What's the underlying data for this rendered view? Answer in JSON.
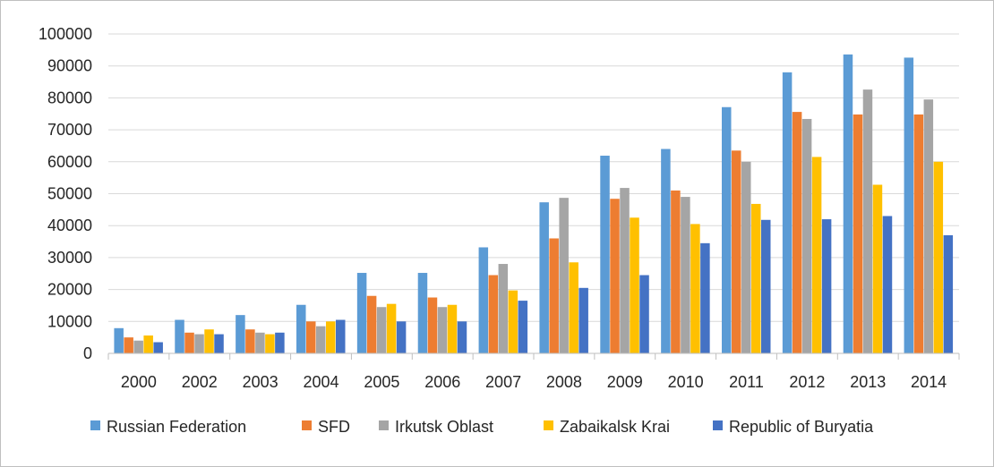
{
  "chart_data": {
    "type": "bar",
    "title": "",
    "xlabel": "",
    "ylabel": "",
    "ylim": [
      0,
      100000
    ],
    "yticks": [
      0,
      10000,
      20000,
      30000,
      40000,
      50000,
      60000,
      70000,
      80000,
      90000,
      100000
    ],
    "grid": true,
    "legend_position": "bottom",
    "categories": [
      "2000",
      "2002",
      "2003",
      "2004",
      "2005",
      "2006",
      "2007",
      "2008",
      "2009",
      "2010",
      "2011",
      "2012",
      "2013",
      "2014"
    ],
    "series": [
      {
        "name": "Russian Federation",
        "color": "#5b9bd5",
        "values": [
          7900,
          10500,
          12000,
          15200,
          25200,
          25200,
          33200,
          47300,
          61900,
          64000,
          77100,
          88000,
          93600,
          92600
        ]
      },
      {
        "name": "SFD",
        "color": "#ed7d31",
        "values": [
          5000,
          6500,
          7500,
          10000,
          18000,
          17500,
          24500,
          36000,
          48400,
          51000,
          63500,
          75600,
          74800,
          74800
        ]
      },
      {
        "name": "Irkutsk Oblast",
        "color": "#a5a5a5",
        "values": [
          4000,
          6000,
          6500,
          8500,
          14500,
          14500,
          28000,
          48700,
          51800,
          49000,
          60000,
          73400,
          82600,
          79500
        ]
      },
      {
        "name": "Zabaikalsk Krai",
        "color": "#ffc000",
        "values": [
          5600,
          7500,
          6000,
          10000,
          15500,
          15200,
          19700,
          28500,
          42500,
          40500,
          46800,
          61500,
          52800,
          60000
        ]
      },
      {
        "name": "Republic of Buryatia",
        "color": "#4472c4",
        "values": [
          3500,
          6000,
          6500,
          10500,
          10000,
          10000,
          16500,
          20500,
          24500,
          34500,
          41800,
          42000,
          43000,
          37000
        ]
      }
    ]
  }
}
